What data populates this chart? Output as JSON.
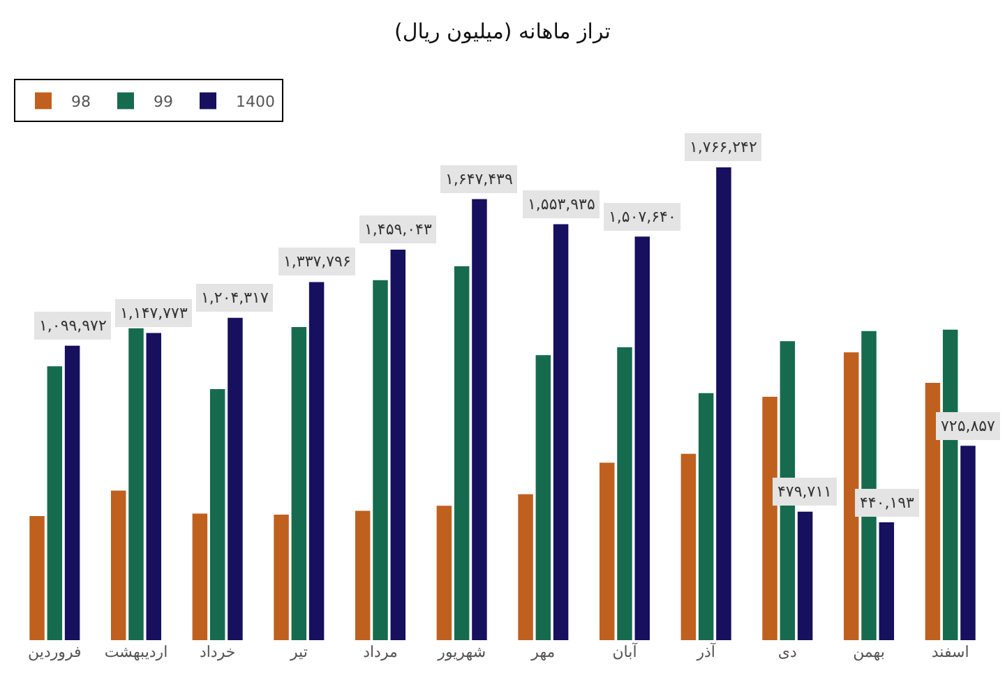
{
  "chart_data": {
    "type": "bar",
    "title": "تراز ماهانه (میلیون ریال)",
    "categories": [
      "فروردین",
      "اردیبهشت",
      "خرداد",
      "تیر",
      "مرداد",
      "شهریور",
      "مهر",
      "آبان",
      "آذر",
      "دی",
      "بهمن",
      "اسفند"
    ],
    "series": [
      {
        "name": "98",
        "color": "#c0601e",
        "values": [
          464000,
          559000,
          473000,
          469000,
          483000,
          502000,
          545000,
          663000,
          696000,
          909000,
          1075000,
          961000
        ]
      },
      {
        "name": "99",
        "color": "#166b4f",
        "values": [
          1023000,
          1165000,
          938000,
          1170000,
          1345000,
          1397000,
          1065000,
          1094000,
          923000,
          1117000,
          1155000,
          1160000
        ]
      },
      {
        "name": "1400",
        "color": "#16105e",
        "values": [
          1099972,
          1147773,
          1204317,
          1337796,
          1459043,
          1647439,
          1553935,
          1507640,
          1766242,
          479711,
          440193,
          725857
        ],
        "value_labels": [
          "۱,۰۹۹,۹۷۲",
          "۱,۱۴۷,۷۷۳",
          "۱,۲۰۴,۳۱۷",
          "۱,۳۳۷,۷۹۶",
          "۱,۴۵۹,۰۴۳",
          "۱,۶۴۷,۴۳۹",
          "۱,۵۵۳,۹۳۵",
          "۱,۵۰۷,۶۴۰",
          "۱,۷۶۶,۲۴۲",
          "۴۷۹,۷۱۱",
          "۴۴۰,۱۹۳",
          "۷۲۵,۸۵۷"
        ]
      }
    ],
    "legend": "top left"
  }
}
